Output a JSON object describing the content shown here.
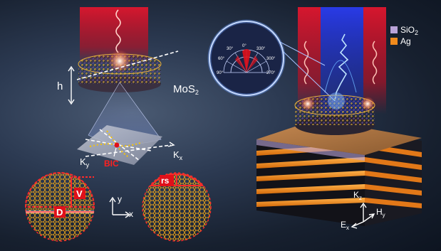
{
  "labels": {
    "height": "h",
    "material": "MoS2",
    "bic": "BIC",
    "kx": "Kx",
    "ky": "Ky",
    "kz": "Kz",
    "hy": "Hy",
    "ex": "Ex",
    "v": "V",
    "d": "D",
    "rs": "rs",
    "axis_x": "x",
    "axis_y": "y"
  },
  "legend": [
    {
      "name": "SiO2",
      "color": "#b9a3d8"
    },
    {
      "name": "Ag",
      "color": "#f08a1c"
    }
  ],
  "polar_ticks": [
    "0°",
    "30°",
    "60°",
    "90°",
    "330°",
    "300°",
    "270°"
  ],
  "colors": {
    "beam_red": "#c8142a",
    "beam_blue": "#2036d8",
    "accent_orange": "#f5a31a",
    "bic_red": "#e0101a",
    "cone": "#b8c8ff"
  }
}
